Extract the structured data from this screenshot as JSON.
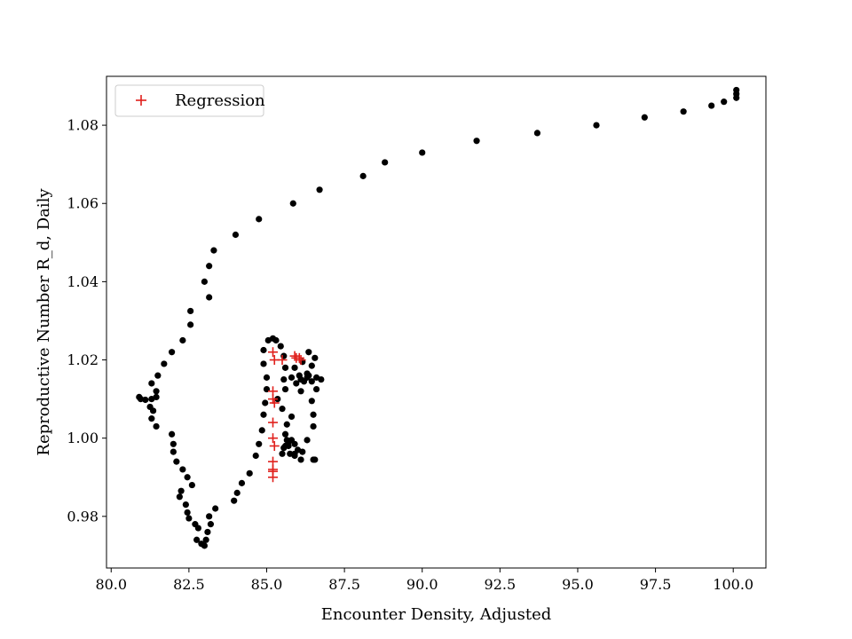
{
  "chart_data": {
    "type": "scatter",
    "title": "",
    "xlabel": "Encounter Density, Adjusted",
    "ylabel": "Reproductive Number R_d, Daily",
    "xlim": [
      79.85,
      101.05
    ],
    "ylim": [
      0.9668,
      1.0925
    ],
    "xticks": [
      80.0,
      82.5,
      85.0,
      87.5,
      90.0,
      92.5,
      95.0,
      97.5,
      100.0
    ],
    "xtick_labels": [
      "80.0",
      "82.5",
      "85.0",
      "87.5",
      "90.0",
      "92.5",
      "95.0",
      "97.5",
      "100.0"
    ],
    "yticks": [
      0.98,
      1.0,
      1.02,
      1.04,
      1.06,
      1.08
    ],
    "ytick_labels": [
      "0.98",
      "1.00",
      "1.02",
      "1.04",
      "1.06",
      "1.08"
    ],
    "grid": false,
    "legend": {
      "position": "top-left",
      "entries": [
        "Regression"
      ]
    },
    "series": [
      {
        "marker": "circle",
        "color": "#000000",
        "points": [
          [
            100.1,
            1.089
          ],
          [
            100.1,
            1.087
          ],
          [
            100.1,
            1.088
          ],
          [
            99.7,
            1.086
          ],
          [
            99.3,
            1.085
          ],
          [
            98.4,
            1.0835
          ],
          [
            97.15,
            1.082
          ],
          [
            95.6,
            1.08
          ],
          [
            93.7,
            1.078
          ],
          [
            91.75,
            1.076
          ],
          [
            90.0,
            1.073
          ],
          [
            88.8,
            1.0705
          ],
          [
            88.1,
            1.067
          ],
          [
            86.7,
            1.0635
          ],
          [
            85.85,
            1.06
          ],
          [
            84.75,
            1.056
          ],
          [
            84.0,
            1.052
          ],
          [
            83.3,
            1.048
          ],
          [
            83.15,
            1.044
          ],
          [
            83.0,
            1.04
          ],
          [
            83.15,
            1.036
          ],
          [
            82.55,
            1.0325
          ],
          [
            82.55,
            1.029
          ],
          [
            82.3,
            1.025
          ],
          [
            81.95,
            1.022
          ],
          [
            81.7,
            1.019
          ],
          [
            81.5,
            1.016
          ],
          [
            81.3,
            1.014
          ],
          [
            81.45,
            1.012
          ],
          [
            81.45,
            1.0105
          ],
          [
            81.3,
            1.01
          ],
          [
            81.1,
            1.0098
          ],
          [
            80.9,
            1.0105
          ],
          [
            80.95,
            1.01
          ],
          [
            81.25,
            1.008
          ],
          [
            81.35,
            1.007
          ],
          [
            81.3,
            1.005
          ],
          [
            81.45,
            1.003
          ],
          [
            81.95,
            1.001
          ],
          [
            82.0,
            0.9985
          ],
          [
            82.0,
            0.9965
          ],
          [
            82.1,
            0.994
          ],
          [
            82.3,
            0.992
          ],
          [
            82.45,
            0.99
          ],
          [
            82.6,
            0.988
          ],
          [
            82.25,
            0.9865
          ],
          [
            82.2,
            0.985
          ],
          [
            82.4,
            0.983
          ],
          [
            82.45,
            0.981
          ],
          [
            82.5,
            0.9795
          ],
          [
            82.7,
            0.978
          ],
          [
            82.8,
            0.977
          ],
          [
            82.75,
            0.974
          ],
          [
            82.9,
            0.973
          ],
          [
            83.0,
            0.9725
          ],
          [
            83.05,
            0.974
          ],
          [
            83.1,
            0.976
          ],
          [
            83.2,
            0.978
          ],
          [
            83.15,
            0.98
          ],
          [
            83.35,
            0.982
          ],
          [
            83.95,
            0.984
          ],
          [
            84.05,
            0.986
          ],
          [
            84.2,
            0.9885
          ],
          [
            84.45,
            0.991
          ],
          [
            84.65,
            0.9955
          ],
          [
            84.75,
            0.9985
          ],
          [
            84.85,
            1.002
          ],
          [
            84.9,
            1.006
          ],
          [
            84.95,
            1.009
          ],
          [
            85.0,
            1.0125
          ],
          [
            85.0,
            1.0155
          ],
          [
            84.9,
            1.019
          ],
          [
            84.9,
            1.0225
          ],
          [
            85.05,
            1.025
          ],
          [
            85.2,
            1.0255
          ],
          [
            85.3,
            1.025
          ],
          [
            85.45,
            1.0235
          ],
          [
            85.55,
            1.021
          ],
          [
            85.6,
            1.018
          ],
          [
            85.55,
            1.015
          ],
          [
            85.6,
            1.0125
          ],
          [
            85.35,
            1.01
          ],
          [
            85.5,
            1.0075
          ],
          [
            85.8,
            1.0055
          ],
          [
            85.65,
            1.0035
          ],
          [
            85.6,
            1.001
          ],
          [
            85.65,
            0.9995
          ],
          [
            85.5,
            0.996
          ],
          [
            85.55,
            0.9975
          ],
          [
            85.7,
            0.998
          ],
          [
            85.8,
            0.9995
          ],
          [
            85.9,
            0.9985
          ],
          [
            86.0,
            0.997
          ],
          [
            85.9,
            0.996
          ],
          [
            86.1,
            0.9945
          ],
          [
            86.15,
            0.9965
          ],
          [
            86.3,
            0.9995
          ],
          [
            86.5,
            1.003
          ],
          [
            86.5,
            1.006
          ],
          [
            86.45,
            1.0095
          ],
          [
            86.6,
            1.0125
          ],
          [
            86.45,
            1.0145
          ],
          [
            86.35,
            1.016
          ],
          [
            86.1,
            1.015
          ],
          [
            85.95,
            1.014
          ],
          [
            86.1,
            1.012
          ],
          [
            86.2,
            1.0145
          ],
          [
            86.3,
            1.0165
          ],
          [
            86.45,
            1.0185
          ],
          [
            86.55,
            1.0205
          ],
          [
            86.35,
            1.022
          ],
          [
            86.15,
            1.0195
          ],
          [
            85.9,
            1.018
          ],
          [
            85.8,
            1.0155
          ],
          [
            86.05,
            1.016
          ],
          [
            86.3,
            1.0155
          ],
          [
            86.6,
            1.0155
          ],
          [
            86.75,
            1.015
          ],
          [
            86.55,
            0.9945
          ],
          [
            86.5,
            0.9945
          ],
          [
            85.7,
            0.999
          ],
          [
            85.6,
            0.998
          ],
          [
            85.75,
            0.996
          ],
          [
            85.9,
            0.9955
          ]
        ]
      },
      {
        "name": "Regression",
        "marker": "plus",
        "color": "#e0201c",
        "points": [
          [
            85.2,
            1.022
          ],
          [
            85.25,
            1.02
          ],
          [
            85.5,
            1.02
          ],
          [
            85.9,
            1.021
          ],
          [
            86.05,
            1.0205
          ],
          [
            86.1,
            1.02
          ],
          [
            85.95,
            1.0205
          ],
          [
            85.2,
            1.012
          ],
          [
            85.2,
            1.01
          ],
          [
            85.25,
            1.009
          ],
          [
            85.2,
            1.004
          ],
          [
            85.2,
            1.0
          ],
          [
            85.25,
            0.998
          ],
          [
            85.2,
            0.994
          ],
          [
            85.2,
            0.992
          ],
          [
            85.2,
            0.9915
          ],
          [
            85.2,
            0.99
          ]
        ]
      }
    ]
  }
}
